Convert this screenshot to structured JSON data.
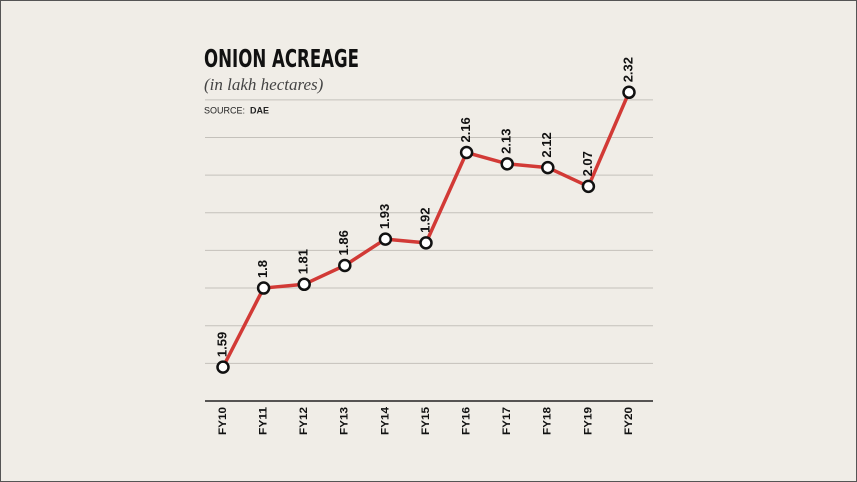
{
  "chart_data": {
    "type": "line",
    "title": "ONION ACREAGE",
    "subtitle": "(in lakh hectares)",
    "source_label": "SOURCE:",
    "source": "DAE",
    "categories": [
      "FY10",
      "FY11",
      "FY12",
      "FY13",
      "FY14",
      "FY15",
      "FY16",
      "FY17",
      "FY18",
      "FY19",
      "FY20"
    ],
    "values": [
      1.59,
      1.8,
      1.81,
      1.86,
      1.93,
      1.92,
      2.16,
      2.13,
      2.12,
      2.07,
      2.32
    ],
    "color": "#d23a36",
    "ylim": [
      1.5,
      2.35
    ],
    "yticks": [
      1.6,
      1.7,
      1.8,
      1.9,
      2.0,
      2.1,
      2.2,
      2.3
    ],
    "grid": true
  }
}
